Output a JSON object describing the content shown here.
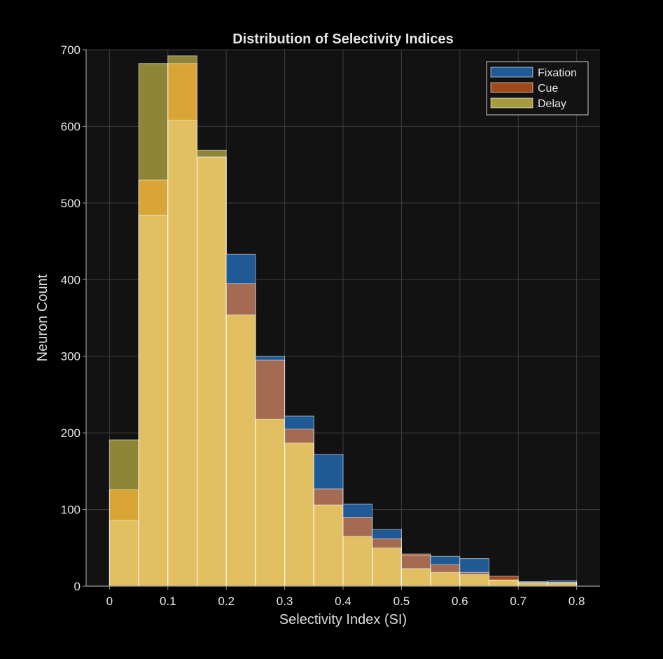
{
  "chart_data": {
    "type": "bar",
    "subtype": "overlaid-histogram",
    "title": "Distribution of Selectivity Indices",
    "xlabel": "Selectivity Index (SI)",
    "ylabel": "Neuron Count",
    "xlim": [
      -0.04,
      0.84
    ],
    "ylim": [
      0,
      700
    ],
    "xticks": [
      0,
      0.1,
      0.2,
      0.3,
      0.4,
      0.5,
      0.6,
      0.7,
      0.8
    ],
    "xtick_labels": [
      "0",
      "0.1",
      "0.2",
      "0.3",
      "0.4",
      "0.5",
      "0.6",
      "0.7",
      "0.8"
    ],
    "yticks": [
      0,
      100,
      200,
      300,
      400,
      500,
      600,
      700
    ],
    "ytick_labels": [
      "0",
      "100",
      "200",
      "300",
      "400",
      "500",
      "600",
      "700"
    ],
    "grid": true,
    "legend_position": "top-right",
    "bin_edges": [
      0,
      0.05,
      0.1,
      0.15,
      0.2,
      0.25,
      0.3,
      0.35,
      0.4,
      0.45,
      0.5,
      0.55,
      0.6,
      0.65,
      0.7,
      0.75,
      0.8
    ],
    "series": [
      {
        "name": "Fixation",
        "color": "#1f5a96",
        "values": [
          86,
          484,
          608,
          560,
          433,
          300,
          222,
          172,
          107,
          74,
          40,
          39,
          36,
          8,
          6,
          7
        ]
      },
      {
        "name": "Cue",
        "color": "#a04a1c",
        "values": [
          126,
          530,
          682,
          560,
          395,
          295,
          205,
          127,
          90,
          62,
          42,
          28,
          18,
          13,
          4,
          4
        ]
      },
      {
        "name": "Delay",
        "color": "#a89a40",
        "values": [
          191,
          682,
          692,
          569,
          354,
          218,
          187,
          106,
          65,
          50,
          23,
          18,
          15,
          8,
          5,
          5
        ]
      }
    ],
    "colors": {
      "background": "#000000",
      "plot_background": "#121212",
      "grid": "#3c3c3c",
      "axis": "#9a9a9a",
      "overlap_fill": "#e2c061"
    }
  }
}
